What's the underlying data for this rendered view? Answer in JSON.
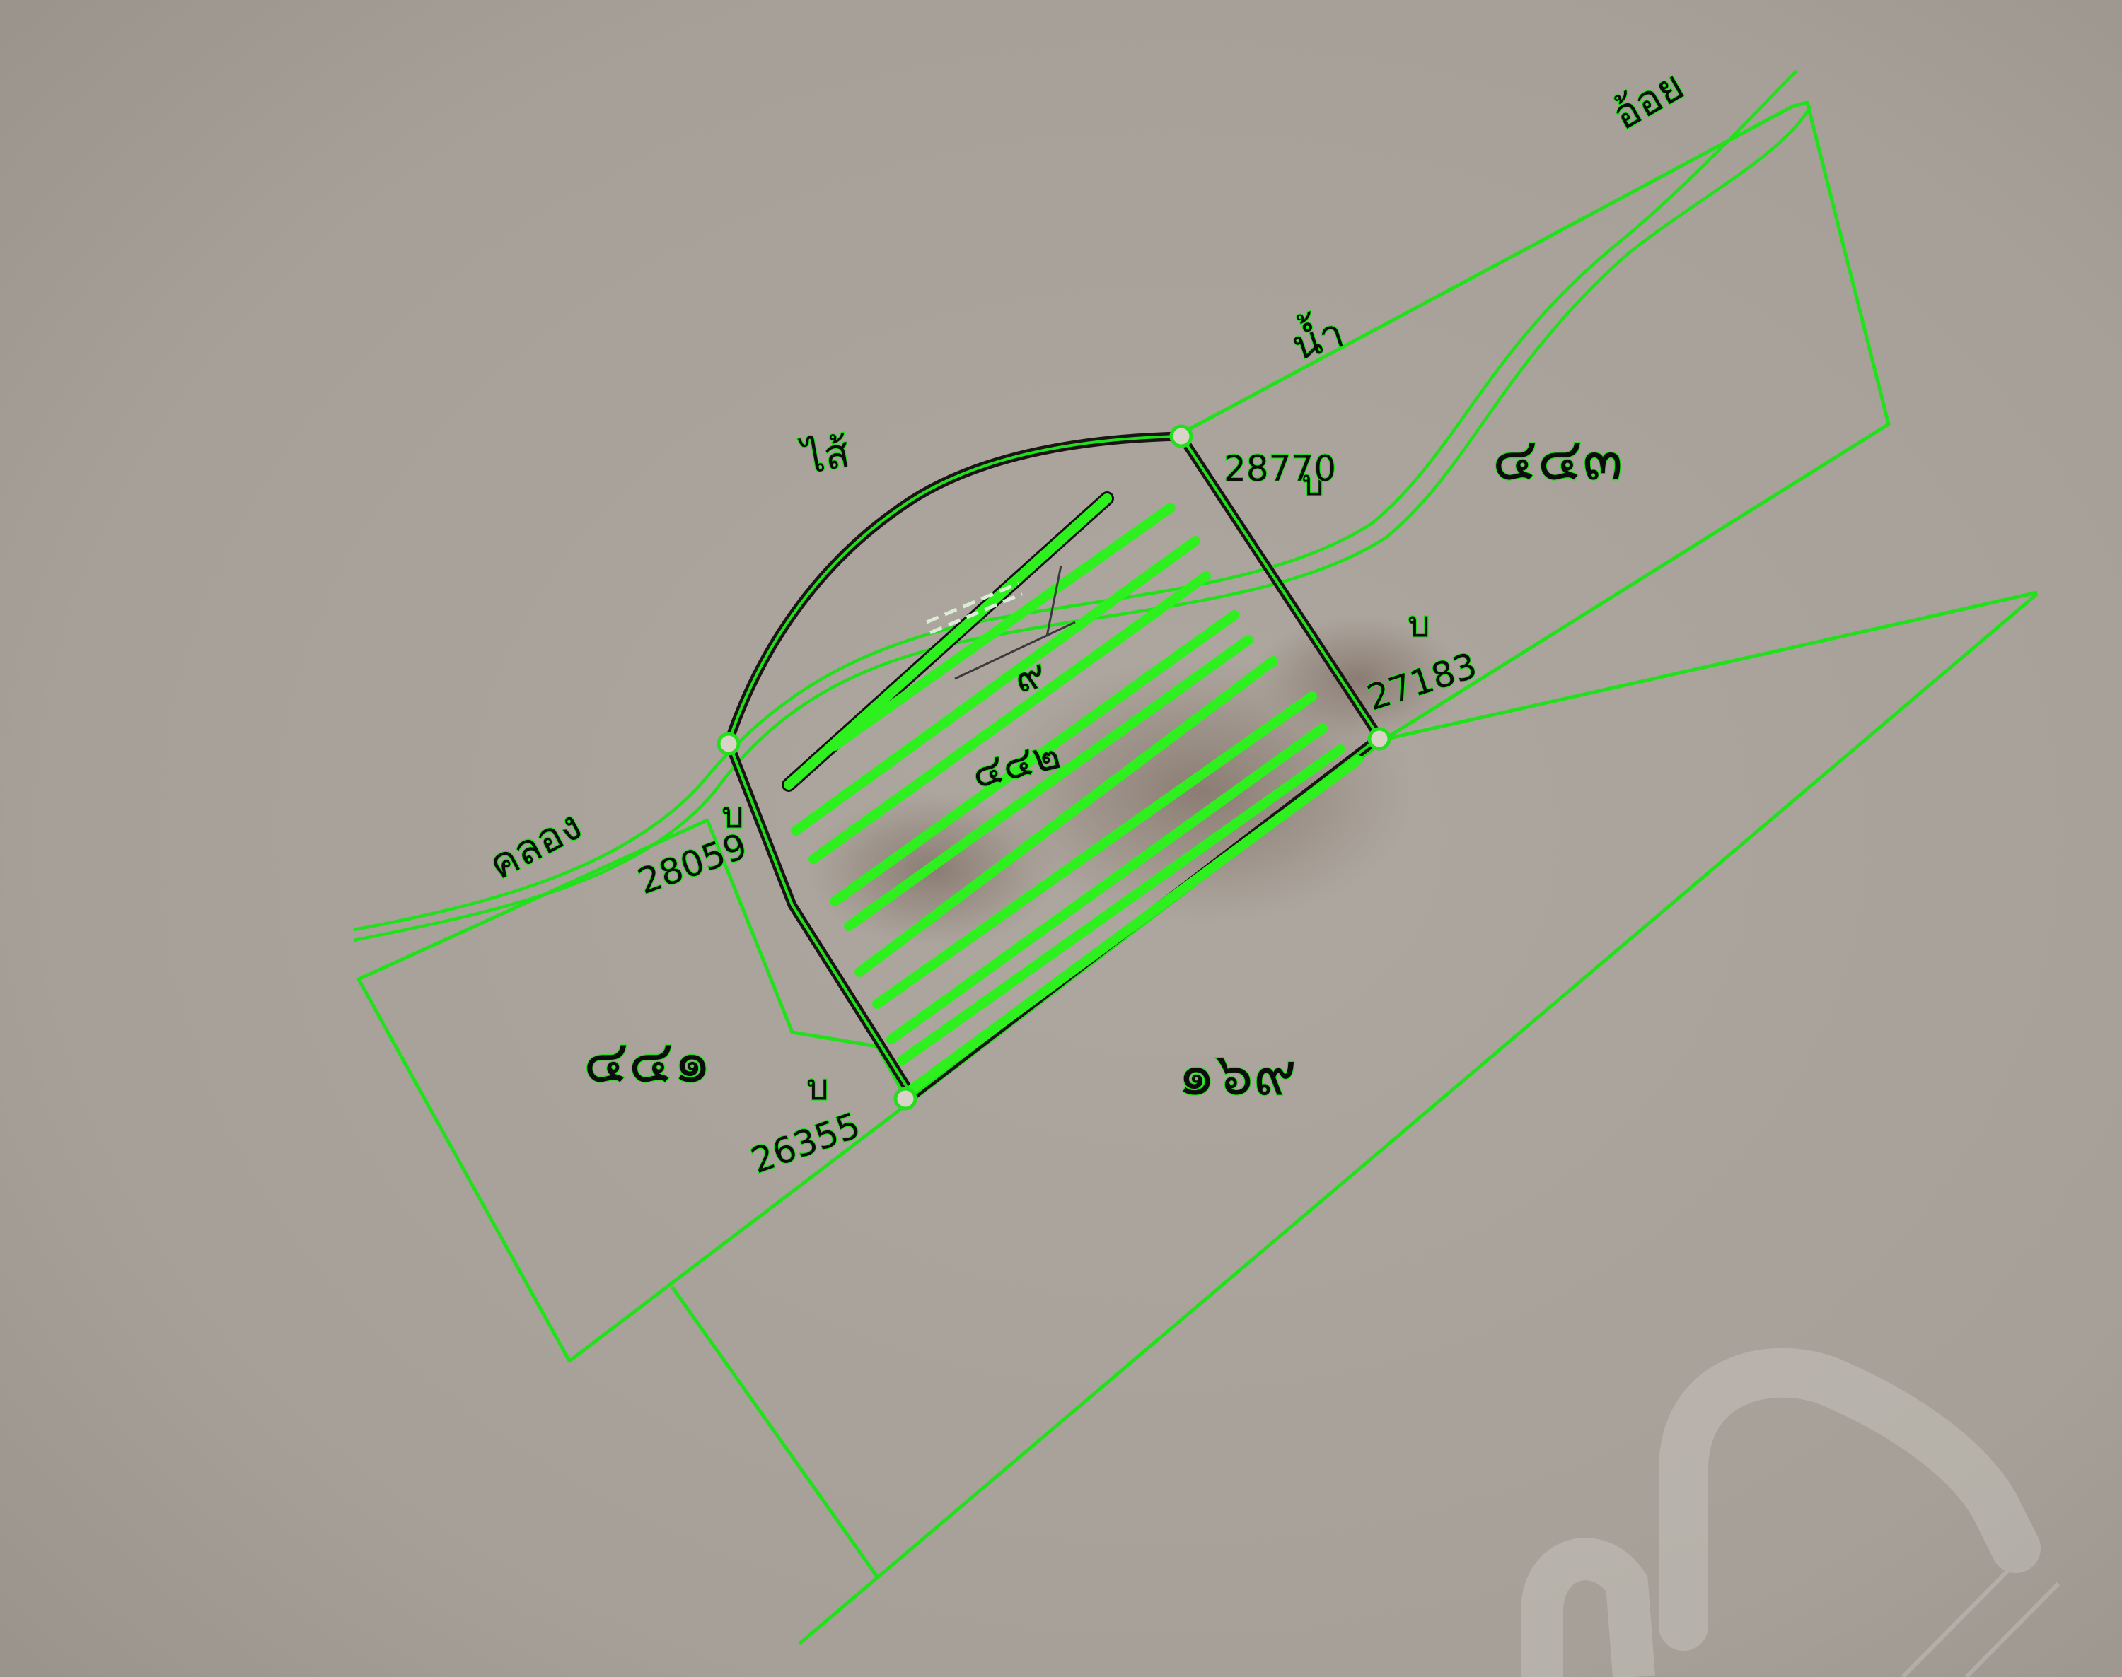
{
  "map": {
    "waterway_words": [
      "คลอง",
      "ไส้",
      "น้ำ",
      "อ้อย"
    ],
    "parcels": {
      "subject": "๔๔๒",
      "north_east": "๔๔๓",
      "west": "๔๔๑",
      "south": "๑๖๙"
    },
    "subject_mark": "๙",
    "survey_points": [
      {
        "prefix": "บ",
        "id": "28770"
      },
      {
        "prefix": "บ",
        "id": "27183"
      },
      {
        "prefix": "บ",
        "id": "28059"
      },
      {
        "prefix": "บ",
        "id": "26355"
      }
    ],
    "colors": {
      "paper": "#a8a39c",
      "trace_line": "#22e01c",
      "ink": "#1a1414"
    },
    "hatch_line_count": 11
  }
}
